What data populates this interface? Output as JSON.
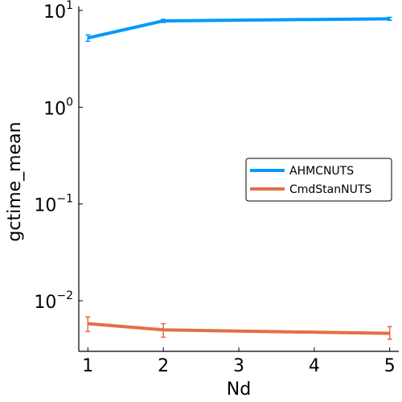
{
  "chart_data": {
    "type": "line",
    "xlabel": "Nd",
    "ylabel": "gctime_mean",
    "xlim": [
      0.88,
      5.12
    ],
    "ylim": [
      0.003,
      11.0
    ],
    "yscale": "log",
    "xticks": [
      1,
      2,
      3,
      4,
      5
    ],
    "yticks": [
      {
        "base": "10",
        "exp": "1",
        "value": 10
      },
      {
        "base": "10",
        "exp": "0",
        "value": 1
      },
      {
        "base": "10",
        "exp": "−1",
        "value": 0.1
      },
      {
        "base": "10",
        "exp": "−2",
        "value": 0.01
      }
    ],
    "grid": false,
    "legend_position": "right",
    "series": [
      {
        "name": "AHMCNUTS",
        "color": "#009af9",
        "x": [
          1,
          2,
          5
        ],
        "y": [
          5.2,
          7.8,
          8.2
        ],
        "y_low": [
          4.8,
          7.5,
          7.9
        ],
        "y_high": [
          5.6,
          8.1,
          8.5
        ]
      },
      {
        "name": "CmdStanNUTS",
        "color": "#e26f46",
        "x": [
          1,
          2,
          5
        ],
        "y": [
          0.0058,
          0.005,
          0.0046
        ],
        "y_low": [
          0.0048,
          0.0042,
          0.004
        ],
        "y_high": [
          0.0068,
          0.0058,
          0.0054
        ]
      }
    ]
  }
}
